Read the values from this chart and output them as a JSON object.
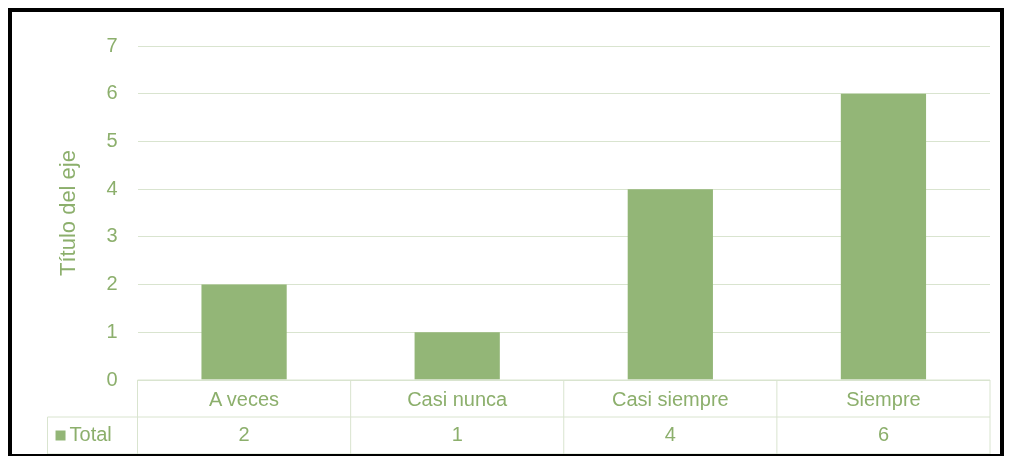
{
  "chart_data": {
    "type": "bar",
    "categories": [
      "A veces",
      "Casi nunca",
      "Casi siempre",
      "Siempre"
    ],
    "series": [
      {
        "name": "Total",
        "color": "#93b677",
        "values": [
          2,
          1,
          4,
          6
        ]
      }
    ],
    "ylabel": "Título del eje",
    "ylim": [
      0,
      7
    ],
    "yticks": [
      0,
      1,
      2,
      3,
      4,
      5,
      6,
      7
    ],
    "grid": "y",
    "data_labels": true
  }
}
